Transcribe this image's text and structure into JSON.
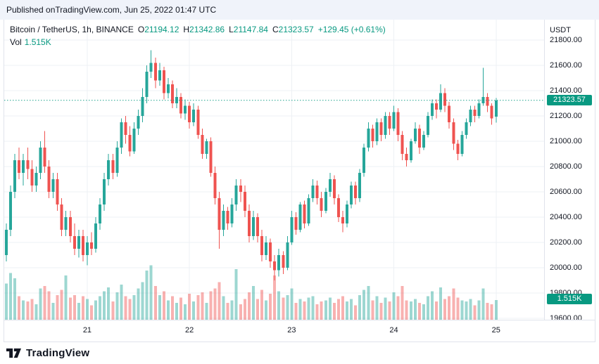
{
  "banner": {
    "prefix": "Published on ",
    "link_text": "TradingView.com",
    "suffix": ", Jun 25, 2022 01:47 UTC"
  },
  "legend": {
    "symbol": "Bitcoin / TetherUS, 1h, BINANCE",
    "open_label": "O",
    "open": "21194.12",
    "high_label": "H",
    "high": "21342.86",
    "low_label": "L",
    "low": "21147.84",
    "close_label": "C",
    "close": "21323.57",
    "change": "+129.45 (+0.61%)",
    "volume_label": "Vol",
    "volume_value": "1.515K"
  },
  "price_scale": {
    "currency": "USDT",
    "labels": [
      "21800.00",
      "21600.00",
      "21400.00",
      "21200.00",
      "21000.00",
      "20800.00",
      "20600.00",
      "20400.00",
      "20200.00",
      "20000.00",
      "19800.00",
      "19600.00"
    ],
    "last_price_badge": "21323.57",
    "last_volume_badge": "1.515K"
  },
  "footer": {
    "brand": "TradingView"
  },
  "colors": {
    "up": "#26a69a",
    "down": "#ef5350",
    "up_volume": "rgba(38,166,154,0.45)",
    "down_volume": "rgba(239,83,80,0.45)",
    "accent": "#089981",
    "badge_text": "#ffffff",
    "grid": "#edf0f4"
  },
  "chart_data": {
    "type": "candlestick",
    "title": "Bitcoin / TetherUS, 1h, BINANCE",
    "interval": "1h",
    "quote_currency": "USDT",
    "legend_position": "top-left",
    "grid": true,
    "y_axis": {
      "min": 19600,
      "max": 21800,
      "step": 200
    },
    "x_ticks": {
      "labels": [
        "21",
        "22",
        "23",
        "24",
        "25"
      ],
      "indices": [
        19,
        43,
        67,
        91,
        115
      ]
    },
    "volume_axis_max": 4.6,
    "last_bar": {
      "open": 21194.12,
      "high": 21342.86,
      "low": 21147.84,
      "close": 21323.57,
      "change_abs": 129.45,
      "change_pct": 0.61,
      "volume_k": 1.515
    },
    "columns": [
      "open",
      "high",
      "low",
      "close",
      "volume_k"
    ],
    "candles": [
      [
        20100,
        20350,
        20050,
        20300,
        2.8
      ],
      [
        20300,
        20650,
        20250,
        20600,
        3.6
      ],
      [
        20600,
        20900,
        20550,
        20850,
        3.2
      ],
      [
        20850,
        20950,
        20700,
        20750,
        1.8
      ],
      [
        20750,
        20900,
        20650,
        20850,
        1.5
      ],
      [
        20850,
        20950,
        20700,
        20780,
        1.4
      ],
      [
        20780,
        20850,
        20600,
        20650,
        1.6
      ],
      [
        20650,
        20800,
        20600,
        20750,
        1.2
      ],
      [
        20750,
        21000,
        20700,
        20950,
        2.4
      ],
      [
        20950,
        21080,
        20750,
        20800,
        2.6
      ],
      [
        20800,
        20850,
        20550,
        20600,
        2.2
      ],
      [
        20600,
        20750,
        20550,
        20700,
        1.3
      ],
      [
        20700,
        20750,
        20450,
        20500,
        1.9
      ],
      [
        20500,
        20550,
        20250,
        20300,
        2.3
      ],
      [
        20300,
        20450,
        20250,
        20400,
        3.4
      ],
      [
        20400,
        20450,
        20200,
        20250,
        1.7
      ],
      [
        20250,
        20350,
        20100,
        20150,
        1.9
      ],
      [
        20150,
        20300,
        20080,
        20250,
        1.3
      ],
      [
        20250,
        20300,
        20050,
        20100,
        1.8
      ],
      [
        20100,
        20250,
        20020,
        20200,
        1.6
      ],
      [
        20200,
        20280,
        20100,
        20150,
        1.1
      ],
      [
        20150,
        20400,
        20120,
        20350,
        1.5
      ],
      [
        20350,
        20550,
        20300,
        20500,
        1.8
      ],
      [
        20500,
        20750,
        20450,
        20700,
        2.2
      ],
      [
        20700,
        20900,
        20650,
        20850,
        2.5
      ],
      [
        20850,
        20900,
        20700,
        20750,
        1.4
      ],
      [
        20750,
        21000,
        20720,
        20950,
        2.1
      ],
      [
        20950,
        21180,
        20900,
        21150,
        2.7
      ],
      [
        21150,
        21200,
        20980,
        21050,
        1.8
      ],
      [
        21050,
        21120,
        20880,
        20920,
        1.6
      ],
      [
        20920,
        21150,
        20900,
        21100,
        1.9
      ],
      [
        21100,
        21250,
        21050,
        21200,
        2.4
      ],
      [
        21200,
        21420,
        21150,
        21350,
        2.9
      ],
      [
        21350,
        21600,
        21300,
        21550,
        3.8
      ],
      [
        21550,
        21720,
        21500,
        21620,
        4.2
      ],
      [
        21620,
        21660,
        21420,
        21480,
        2.6
      ],
      [
        21480,
        21620,
        21440,
        21560,
        1.9
      ],
      [
        21560,
        21590,
        21330,
        21380,
        2.2
      ],
      [
        21380,
        21500,
        21340,
        21450,
        1.5
      ],
      [
        21450,
        21480,
        21260,
        21300,
        1.8
      ],
      [
        21300,
        21420,
        21260,
        21350,
        1.3
      ],
      [
        21350,
        21380,
        21180,
        21220,
        1.7
      ],
      [
        21220,
        21330,
        21170,
        21280,
        1.2
      ],
      [
        21280,
        21310,
        21100,
        21150,
        2.0
      ],
      [
        21150,
        21300,
        21120,
        21250,
        1.4
      ],
      [
        21250,
        21280,
        21020,
        21050,
        1.9
      ],
      [
        21050,
        21100,
        20860,
        20900,
        2.1
      ],
      [
        20900,
        21020,
        20860,
        21000,
        1.3
      ],
      [
        21000,
        21030,
        20720,
        20750,
        2.2
      ],
      [
        20750,
        20800,
        20500,
        20550,
        2.4
      ],
      [
        20550,
        20600,
        20150,
        20300,
        2.9
      ],
      [
        20300,
        20500,
        20250,
        20450,
        1.8
      ],
      [
        20450,
        20480,
        20300,
        20350,
        1.3
      ],
      [
        20350,
        20550,
        20320,
        20500,
        1.5
      ],
      [
        20500,
        20700,
        20450,
        20650,
        3.9
      ],
      [
        20650,
        20700,
        20520,
        20600,
        1.2
      ],
      [
        20600,
        20650,
        20400,
        20450,
        1.6
      ],
      [
        20450,
        20500,
        20200,
        20250,
        2.1
      ],
      [
        20250,
        20450,
        20220,
        20400,
        2.6
      ],
      [
        20400,
        20430,
        20200,
        20250,
        1.6
      ],
      [
        20250,
        20300,
        20050,
        20100,
        2.3
      ],
      [
        20100,
        20250,
        20060,
        20200,
        1.5
      ],
      [
        20200,
        20230,
        20000,
        20050,
        2.0
      ],
      [
        20050,
        20100,
        19900,
        19980,
        3.4
      ],
      [
        19980,
        20150,
        19930,
        20100,
        2.2
      ],
      [
        20100,
        20130,
        19950,
        20000,
        1.7
      ],
      [
        20000,
        20250,
        19980,
        20200,
        1.9
      ],
      [
        20200,
        20450,
        20180,
        20400,
        2.4
      ],
      [
        20400,
        20440,
        20260,
        20300,
        1.3
      ],
      [
        20300,
        20520,
        20280,
        20500,
        1.6
      ],
      [
        20500,
        20530,
        20310,
        20350,
        1.4
      ],
      [
        20350,
        20580,
        20330,
        20550,
        1.7
      ],
      [
        20550,
        20700,
        20520,
        20650,
        1.8
      ],
      [
        20650,
        20690,
        20500,
        20550,
        1.2
      ],
      [
        20550,
        20600,
        20400,
        20450,
        1.4
      ],
      [
        20450,
        20630,
        20430,
        20600,
        1.5
      ],
      [
        20600,
        20750,
        20560,
        20700,
        1.7
      ],
      [
        20700,
        20730,
        20500,
        20550,
        1.3
      ],
      [
        20550,
        20580,
        20360,
        20400,
        1.6
      ],
      [
        20400,
        20450,
        20280,
        20350,
        1.8
      ],
      [
        20350,
        20530,
        20320,
        20500,
        1.4
      ],
      [
        20500,
        20680,
        20470,
        20650,
        1.6
      ],
      [
        20650,
        20680,
        20500,
        20550,
        1.1
      ],
      [
        20550,
        20780,
        20520,
        20750,
        1.9
      ],
      [
        20750,
        20980,
        20720,
        20950,
        2.3
      ],
      [
        20950,
        21150,
        20920,
        21100,
        2.6
      ],
      [
        21100,
        21130,
        20950,
        21000,
        1.5
      ],
      [
        21000,
        21180,
        20970,
        21150,
        1.8
      ],
      [
        21150,
        21180,
        21000,
        21050,
        1.3
      ],
      [
        21050,
        21230,
        21020,
        21200,
        1.7
      ],
      [
        21200,
        21230,
        21050,
        21100,
        1.4
      ],
      [
        21100,
        21280,
        21080,
        21230,
        2.1
      ],
      [
        21230,
        21260,
        21000,
        21050,
        1.8
      ],
      [
        21050,
        21080,
        20850,
        20900,
        2.6
      ],
      [
        20900,
        20950,
        20800,
        20850,
        1.5
      ],
      [
        20850,
        21020,
        20830,
        21000,
        1.4
      ],
      [
        21000,
        21150,
        20980,
        21100,
        1.6
      ],
      [
        21100,
        21130,
        20900,
        20950,
        1.3
      ],
      [
        20950,
        21080,
        20930,
        21050,
        1.2
      ],
      [
        21050,
        21230,
        21030,
        21200,
        1.8
      ],
      [
        21200,
        21330,
        21170,
        21300,
        2.2
      ],
      [
        21300,
        21330,
        21180,
        21250,
        1.4
      ],
      [
        21250,
        21450,
        21230,
        21380,
        2.5
      ],
      [
        21380,
        21420,
        21230,
        21280,
        1.6
      ],
      [
        21280,
        21310,
        21100,
        21150,
        1.8
      ],
      [
        21150,
        21180,
        20930,
        20980,
        2.4
      ],
      [
        20980,
        21010,
        20850,
        20900,
        1.7
      ],
      [
        20900,
        21080,
        20880,
        21050,
        1.5
      ],
      [
        21050,
        21180,
        21020,
        21150,
        1.4
      ],
      [
        21150,
        21280,
        21120,
        21250,
        1.6
      ],
      [
        21250,
        21280,
        21150,
        21200,
        1.1
      ],
      [
        21200,
        21330,
        21180,
        21300,
        1.5
      ],
      [
        21300,
        21580,
        21280,
        21350,
        2.4
      ],
      [
        21350,
        21380,
        21230,
        21280,
        1.3
      ],
      [
        21280,
        21300,
        21130,
        21180,
        1.2
      ],
      [
        21194.12,
        21342.86,
        21147.84,
        21323.57,
        1.515
      ]
    ]
  }
}
